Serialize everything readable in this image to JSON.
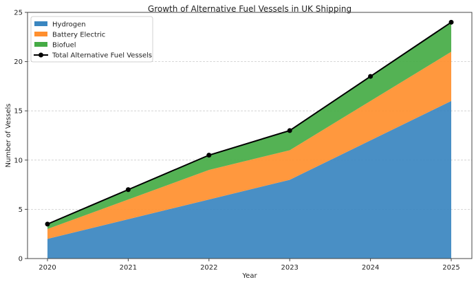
{
  "chart_data": {
    "type": "area",
    "stacked": true,
    "title": "Growth of Alternative Fuel Vessels in UK Shipping",
    "xlabel": "Year",
    "ylabel": "Number of Vessels",
    "categories": [
      "2020",
      "2021",
      "2022",
      "2023",
      "2024",
      "2025"
    ],
    "ylim": [
      0,
      25
    ],
    "yticks": [
      0,
      5,
      10,
      15,
      20,
      25
    ],
    "grid": "y-dashed",
    "legend_position": "top-left",
    "series": [
      {
        "name": "Hydrogen",
        "type": "area",
        "color": "#3a86c0",
        "values": [
          2,
          4,
          6,
          8,
          12,
          16
        ]
      },
      {
        "name": "Battery Electric",
        "type": "area",
        "color": "#ff8f2e",
        "values": [
          1,
          2,
          3,
          3,
          4,
          5
        ]
      },
      {
        "name": "Biofuel",
        "type": "area",
        "color": "#45ab45",
        "values": [
          0.5,
          1,
          1.5,
          2,
          2.5,
          3
        ]
      },
      {
        "name": "Total Alternative Fuel Vessels",
        "type": "line",
        "color": "#000000",
        "marker": "circle",
        "values": [
          3.5,
          7,
          10.5,
          13,
          18.5,
          24
        ]
      }
    ]
  }
}
